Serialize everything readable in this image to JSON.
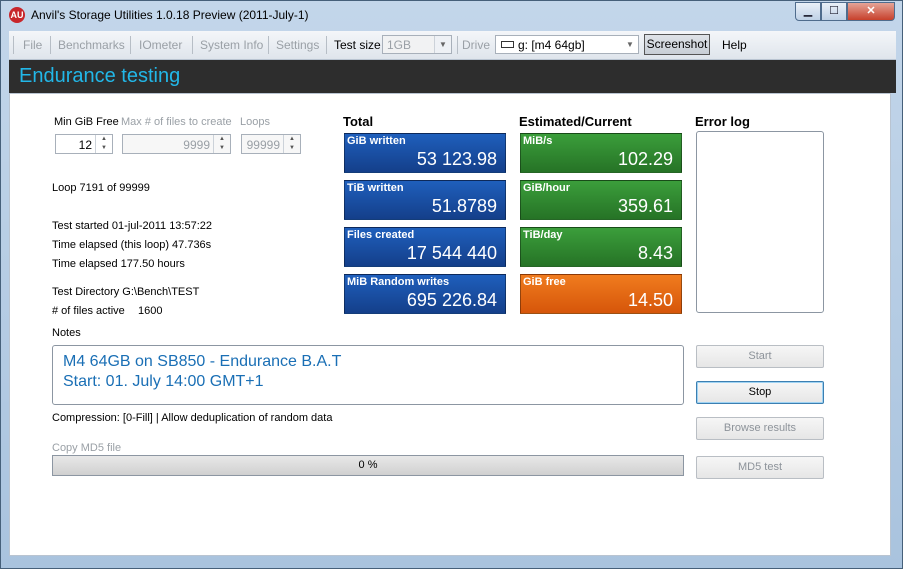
{
  "window": {
    "icon_text": "AU",
    "title": "Anvil's Storage Utilities 1.0.18 Preview (2011-July-1)",
    "min_symbol": "▁",
    "max_symbol": "☐",
    "close_symbol": "✕"
  },
  "menu": {
    "file": "File",
    "benchmarks": "Benchmarks",
    "iometer": "IOmeter",
    "system_info": "System Info",
    "settings": "Settings",
    "test_size_label": "Test size",
    "test_size_value": "1GB",
    "drive_label": "Drive",
    "drive_value": "g: [m4 64gb]",
    "screenshot": "Screenshot",
    "help": "Help"
  },
  "header": {
    "title": "Endurance testing"
  },
  "params": {
    "min_gib_free_label": "Min GiB Free",
    "min_gib_free_value": "12",
    "max_files_label": "Max # of files to create",
    "max_files_value": "9999",
    "loops_label": "Loops",
    "loops_value": "99999"
  },
  "status": {
    "loop": "Loop 7191 of 99999",
    "test_started": "Test started 01-jul-2011 13:57:22",
    "time_elapsed_loop": "Time elapsed (this loop) 47.736s",
    "time_elapsed": "Time elapsed 177.50 hours",
    "test_directory": "Test Directory G:\\Bench\\TEST",
    "files_active_label": "# of files active",
    "files_active_value": "1600"
  },
  "total": {
    "heading": "Total",
    "tiles": [
      {
        "label": "GiB written",
        "value": "53 123.98"
      },
      {
        "label": "TiB written",
        "value": "51.8789"
      },
      {
        "label": "Files created",
        "value": "17 544 440"
      },
      {
        "label": "MiB Random writes",
        "value": "695 226.84"
      }
    ]
  },
  "estimated": {
    "heading": "Estimated/Current",
    "tiles": [
      {
        "label": "MiB/s",
        "value": "102.29"
      },
      {
        "label": "GiB/hour",
        "value": "359.61"
      },
      {
        "label": "TiB/day",
        "value": "8.43"
      },
      {
        "label": "GiB free",
        "value": "14.50"
      }
    ]
  },
  "error_log": {
    "heading": "Error log"
  },
  "notes": {
    "label": "Notes",
    "line1": "M4 64GB on SB850 - Endurance B.A.T",
    "line2": "Start: 01. July 14:00 GMT+1"
  },
  "compression": "Compression: [0-Fill] | Allow deduplication of random data",
  "copy_md5_label": "Copy MD5 file",
  "progress": {
    "text": "0 %",
    "fraction": 0
  },
  "buttons": {
    "start": "Start",
    "stop": "Stop",
    "browse_results": "Browse results",
    "md5_test": "MD5 test"
  },
  "colors": {
    "header_bg": "#2d2d2d",
    "header_text": "#22b7e8",
    "tile_blue": "#1f5fbc",
    "tile_green": "#3b9e3b",
    "tile_orange": "#f07c1e",
    "notes_text": "#1a6fb5"
  }
}
